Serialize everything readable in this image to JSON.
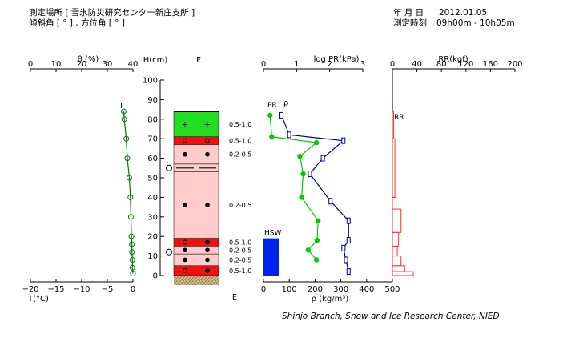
{
  "header": {
    "location": "測定場所 [ 雪氷防災研究センター新庄支所 ]",
    "angles": "傾斜角 [ ° ] , 方位角 [ ° ]",
    "date_label": "年 月 日",
    "date_value": "2012.01.05",
    "time_label": "測定時刻",
    "time_value": "09h00m - 10h05m"
  },
  "footer": {
    "credit": "Shinjo Branch, Snow and Ice Research Center, NIED"
  },
  "chart_data": [
    {
      "type": "line",
      "id": "temperature-profile",
      "top_axis": {
        "label": "θ (%)",
        "ticks": [
          "0",
          "10",
          "20",
          "30",
          "40"
        ],
        "range": [
          0,
          40
        ]
      },
      "bottom_axis": {
        "label": "T(°C)",
        "ticks": [
          "−20",
          "−15",
          "−10",
          "−5",
          "0"
        ],
        "range": [
          -20,
          0
        ]
      },
      "marker_label": "T",
      "series": [
        {
          "x": [
            -1.8,
            -1.7,
            -1.3,
            -1.1,
            -0.7,
            -0.5,
            -0.4,
            -0.3,
            -0.2,
            -0.2,
            -0.1,
            -0.1,
            0.0
          ],
          "y": [
            84,
            80,
            70,
            60,
            50,
            40,
            30,
            20,
            16,
            12,
            8,
            4,
            1
          ]
        }
      ],
      "color": "#007700"
    },
    {
      "type": "bar",
      "id": "snow-pit-stratigraphy",
      "axis_label": "H(cm)",
      "top_label": "F",
      "bottom_label": "E",
      "yticks": [
        "0",
        "10",
        "20",
        "30",
        "40",
        "50",
        "60",
        "70",
        "80",
        "90",
        "100"
      ],
      "ylim": [
        0,
        100
      ],
      "snow_height": 84,
      "layers": [
        {
          "bottom": 71,
          "top": 84,
          "color": "#22dd22",
          "symbol": "+",
          "hardness": "0.5-1.0"
        },
        {
          "bottom": 67,
          "top": 71,
          "color": "#ee1111",
          "symbol": "o",
          "hardness": "0.5-1.0"
        },
        {
          "bottom": 57,
          "top": 67,
          "color": "#ffcccc",
          "symbol": "•",
          "hardness": "0.2-0.5"
        },
        {
          "bottom": 53,
          "top": 57,
          "color": "#ffcccc",
          "symbol": "—",
          "hardness": ""
        },
        {
          "bottom": 19,
          "top": 53,
          "color": "#ffcccc",
          "symbol": "•",
          "hardness": "0.2-0.5"
        },
        {
          "bottom": 15,
          "top": 19,
          "color": "#ee1111",
          "symbol": "o•",
          "hardness": "0.5-1.0"
        },
        {
          "bottom": 11,
          "top": 15,
          "color": "#ffcccc",
          "symbol": "•",
          "hardness": "0.2-0.5"
        },
        {
          "bottom": 5,
          "top": 11,
          "color": "#ffcccc",
          "symbol": "•",
          "hardness": "0.2-0.5"
        },
        {
          "bottom": 0,
          "top": 5,
          "color": "#ee1111",
          "symbol": "o•",
          "hardness": "0.5-1.0"
        }
      ],
      "interface_markers": [
        55,
        12
      ]
    },
    {
      "type": "line",
      "id": "density-pressure-profile",
      "top_axis": {
        "label": "log PR(kPa)",
        "ticks": [
          "0",
          "1",
          "2",
          "3"
        ],
        "range": [
          0,
          3
        ]
      },
      "bottom_axis": {
        "label": "ρ (kg/m³)",
        "ticks": [
          "0",
          "100",
          "200",
          "300",
          "400",
          "500"
        ],
        "range": [
          0,
          500
        ]
      },
      "series": [
        {
          "name": "PR",
          "color": "#00cc00",
          "x": [
            0.2,
            0.25,
            1.6,
            1.1,
            1.2,
            1.15,
            1.65,
            1.62,
            1.35,
            1.6
          ],
          "y": [
            82,
            71,
            68,
            61,
            52,
            40,
            28,
            18,
            13,
            8
          ]
        },
        {
          "name": "ρ",
          "color": "#000080",
          "x": [
            70,
            100,
            310,
            230,
            180,
            260,
            330,
            330,
            310,
            320,
            330
          ],
          "y": [
            82,
            72,
            69,
            60,
            52,
            38,
            28,
            18,
            14,
            8,
            2
          ]
        }
      ],
      "hsw": {
        "label": "HSW",
        "x_value": 60,
        "top": 19
      }
    },
    {
      "type": "bar",
      "id": "ram-resistance",
      "top_axis": {
        "label": "RR(kgf)",
        "ticks": [
          "0",
          "40",
          "80",
          "120",
          "160",
          "200"
        ],
        "range": [
          0,
          200
        ]
      },
      "series_label": "RR",
      "color": "#ff3333",
      "steps": [
        {
          "bottom": 70,
          "top": 84,
          "value": 2
        },
        {
          "bottom": 40,
          "top": 70,
          "value": 4
        },
        {
          "bottom": 34,
          "top": 40,
          "value": 6
        },
        {
          "bottom": 22,
          "top": 34,
          "value": 14
        },
        {
          "bottom": 15,
          "top": 22,
          "value": 10
        },
        {
          "bottom": 10,
          "top": 15,
          "value": 8
        },
        {
          "bottom": 5,
          "top": 10,
          "value": 14
        },
        {
          "bottom": 2,
          "top": 5,
          "value": 20
        },
        {
          "bottom": 0,
          "top": 2,
          "value": 34
        }
      ]
    }
  ]
}
